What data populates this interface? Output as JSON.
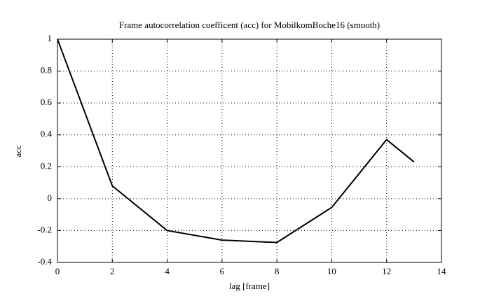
{
  "chart_data": {
    "type": "line",
    "title": "Frame autocorrelation coefficent (acc) for MobilkomBoche16 (smooth)",
    "x_label": "lag [frame]",
    "y_label": "acc",
    "x": [
      0,
      2,
      4,
      6,
      8,
      10,
      12,
      13
    ],
    "series": [
      {
        "color": "#000000",
        "values": [
          1,
          0.08,
          -0.2,
          -0.26,
          -0.275,
          -0.055,
          0.37,
          0.23
        ]
      }
    ],
    "xlim": [
      0,
      14
    ],
    "xticks": [
      0,
      2,
      4,
      6,
      8,
      10,
      12,
      14
    ],
    "ylim": [
      -0.4,
      1
    ],
    "yticks": [
      -0.4,
      -0.2,
      0,
      0.2,
      0.4,
      0.6,
      0.8,
      1
    ],
    "grid": true
  }
}
